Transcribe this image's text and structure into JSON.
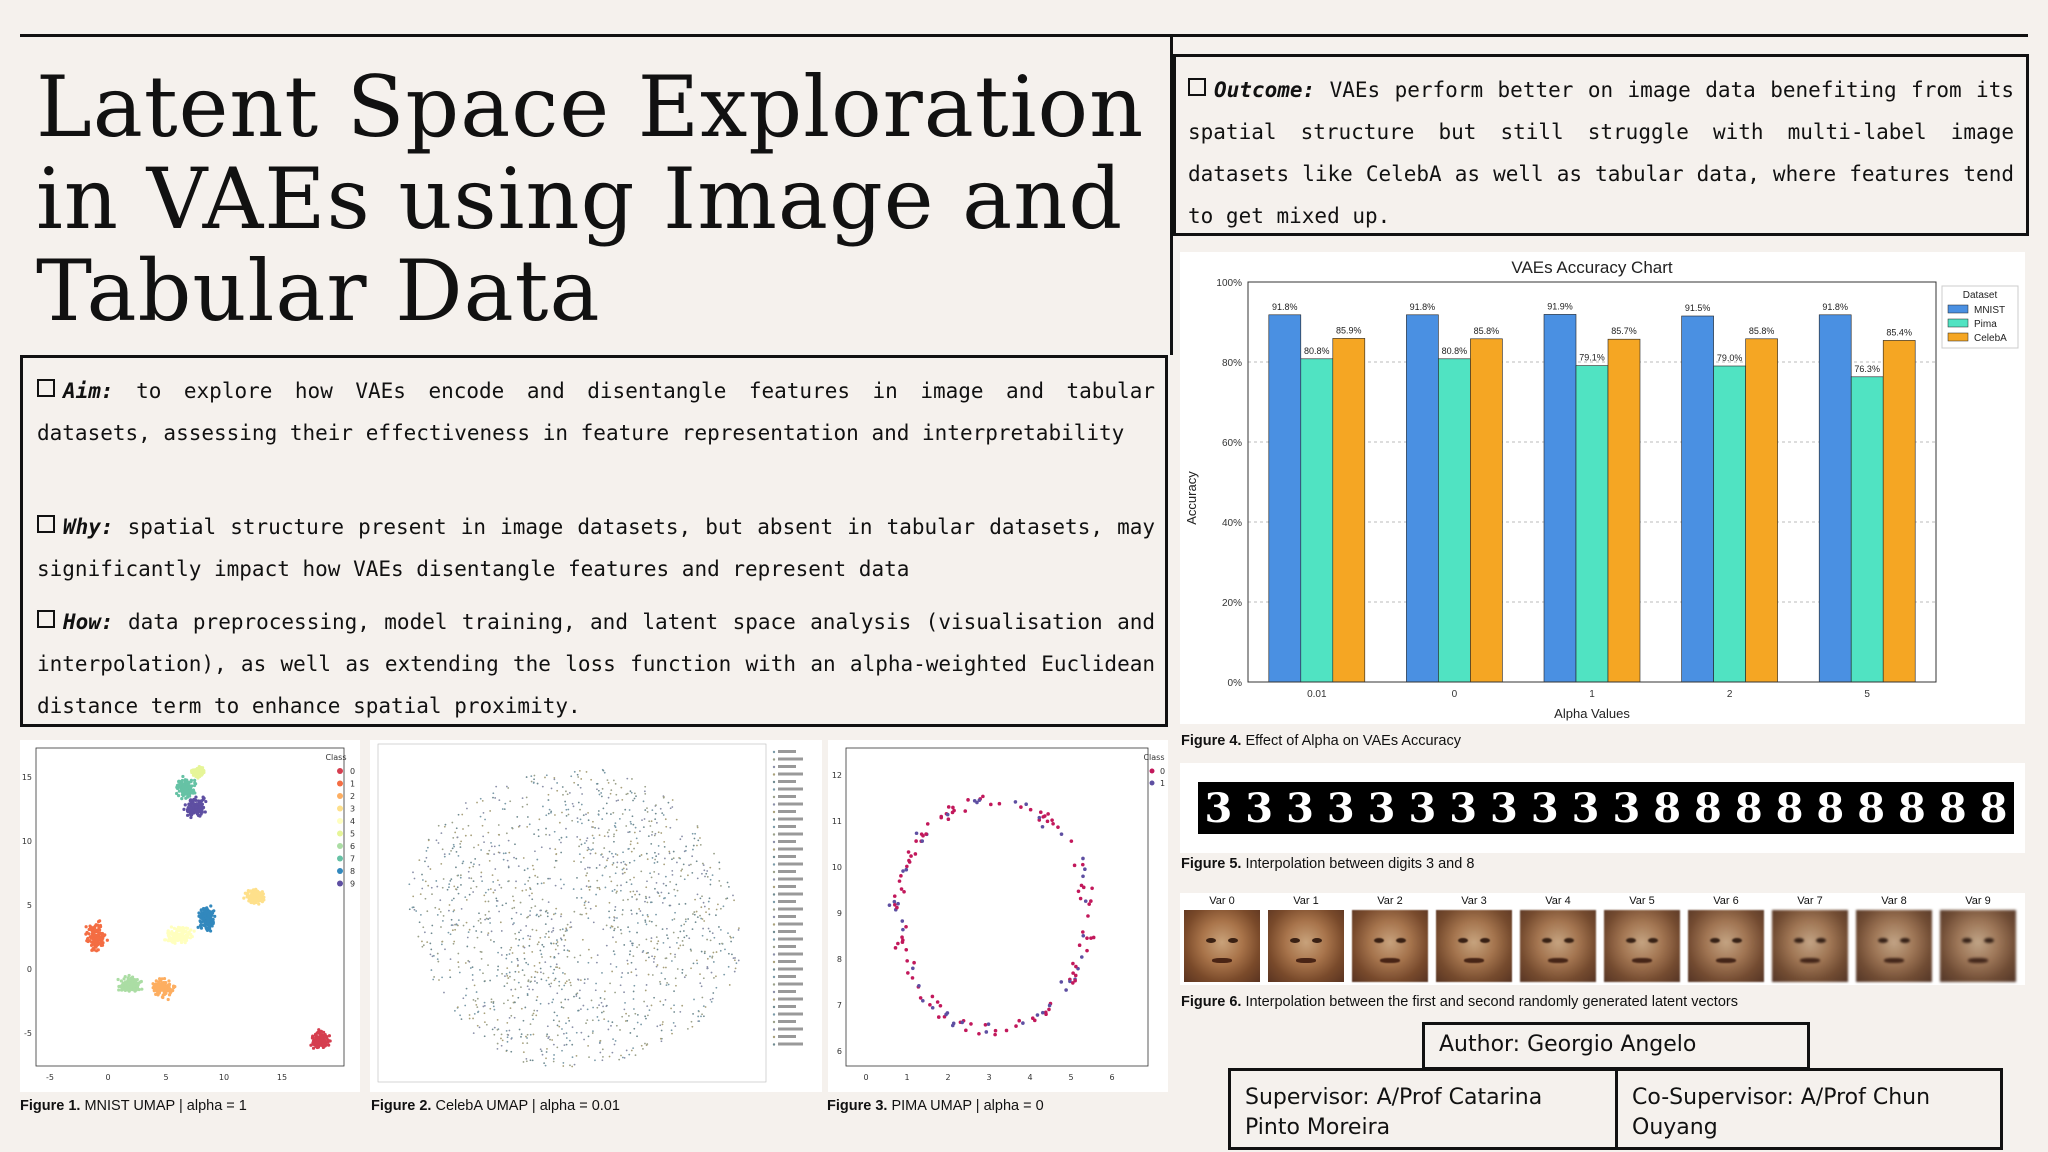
{
  "title": {
    "line1": "Latent Space Exploration",
    "line2": "in VAEs using Image and",
    "line3": "Tabular Data"
  },
  "aim": {
    "label": "Aim:",
    "text": " to explore how VAEs encode and disentangle features in image and tabular datasets, assessing their effectiveness in feature representation and interpretability"
  },
  "why": {
    "label": "Why:",
    "text": " spatial structure present in image datasets, but absent in tabular datasets, may significantly impact how VAEs disentangle features and represent data"
  },
  "how": {
    "label": "How:",
    "text": " data preprocessing, model training, and latent space analysis (visualisation and interpolation), as well as extending the loss function with an alpha-weighted Euclidean distance term to enhance spatial proximity."
  },
  "outcome": {
    "label": "Outcome:",
    "text": " VAEs perform better on image data benefiting from its spatial structure but still struggle with multi-label image datasets like CelebA as well as tabular data, where features tend to get mixed up."
  },
  "figures": {
    "f1": {
      "num": "Figure 1.",
      "text": " MNIST UMAP | alpha = 1"
    },
    "f2": {
      "num": "Figure 2.",
      "text": " CelebA UMAP | alpha = 0.01"
    },
    "f3": {
      "num": "Figure 3.",
      "text": " PIMA UMAP | alpha = 0"
    },
    "f4": {
      "num": "Figure 4.",
      "text": " Effect of Alpha on VAEs Accuracy"
    },
    "f5": {
      "num": "Figure 5.",
      "text": " Interpolation between digits 3 and 8"
    },
    "f6": {
      "num": "Figure 6.",
      "text": " Interpolation between the first and second randomly generated latent vectors"
    }
  },
  "digits": [
    "3",
    "3",
    "3",
    "3",
    "3",
    "3",
    "3",
    "3",
    "3",
    "3",
    "3",
    "8",
    "8",
    "8",
    "8",
    "8",
    "8",
    "8",
    "8",
    "8"
  ],
  "faces": [
    "Var 0",
    "Var 1",
    "Var 2",
    "Var 3",
    "Var 4",
    "Var 5",
    "Var 6",
    "Var 7",
    "Var 8",
    "Var 9"
  ],
  "author": "Author: Georgio Angelo",
  "supervisor": "Supervisor: A/Prof Catarina Pinto Moreira",
  "cosupervisor": "Co-Supervisor: A/Prof Chun Ouyang",
  "chart_data": {
    "type": "bar",
    "title": "VAEs Accuracy Chart",
    "xlabel": "Alpha Values",
    "ylabel": "Accuracy",
    "categories": [
      "0.01",
      "0",
      "1",
      "2",
      "5"
    ],
    "ylim": [
      0,
      100
    ],
    "yticks": [
      "0%",
      "20%",
      "40%",
      "60%",
      "80%",
      "100%"
    ],
    "grid": true,
    "legend_title": "Dataset",
    "legend_position": "top-right",
    "series": [
      {
        "name": "MNIST",
        "color": "#4a90e2",
        "values": [
          91.8,
          91.8,
          91.9,
          91.5,
          91.8
        ],
        "labels": [
          "91.8%",
          "91.8%",
          "91.9%",
          "91.5%",
          "91.8%"
        ]
      },
      {
        "name": "Pima",
        "color": "#50e3c2",
        "values": [
          80.8,
          80.8,
          79.1,
          79.0,
          76.3
        ],
        "labels": [
          "80.8%",
          "80.8%",
          "79.1%",
          "79.0%",
          "76.3%"
        ]
      },
      {
        "name": "CelebA",
        "color": "#f5a623",
        "values": [
          85.9,
          85.8,
          85.7,
          85.8,
          85.4
        ],
        "labels": [
          "85.9%",
          "85.8%",
          "85.7%",
          "85.8%",
          "85.4%"
        ]
      }
    ]
  },
  "umap_mnist": {
    "legend_title": "Class",
    "classes": [
      "0",
      "1",
      "2",
      "3",
      "4",
      "5",
      "6",
      "7",
      "8",
      "9"
    ],
    "colors": [
      "#d53e4f",
      "#f46d43",
      "#fdae61",
      "#fee08b",
      "#ffffbf",
      "#e6f598",
      "#abdda4",
      "#66c2a5",
      "#3288bd",
      "#5e4fa2"
    ],
    "xticks": [
      "-5",
      "0",
      "5",
      "10",
      "15"
    ],
    "yticks": [
      "15",
      "10",
      "5",
      "0",
      "-5"
    ]
  },
  "umap_pima": {
    "legend_title": "Class",
    "classes": [
      "0",
      "1"
    ],
    "xticks": [
      "0",
      "1",
      "2",
      "3",
      "4",
      "5",
      "6"
    ],
    "yticks": [
      "12",
      "11",
      "10",
      "9",
      "8",
      "7",
      "6"
    ]
  }
}
